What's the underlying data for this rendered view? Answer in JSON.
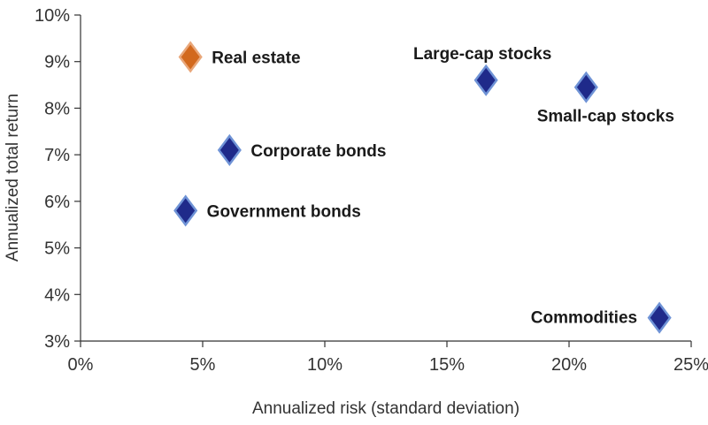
{
  "chart_data": {
    "type": "scatter",
    "xlabel": "Annualized risk (standard deviation)",
    "ylabel": "Annualized total return",
    "xlim": [
      0,
      25
    ],
    "ylim": [
      3,
      10
    ],
    "x_ticks": [
      0,
      5,
      10,
      15,
      20,
      25
    ],
    "y_ticks": [
      3,
      4,
      5,
      6,
      7,
      8,
      9,
      10
    ],
    "x_tick_labels": [
      "0%",
      "5%",
      "10%",
      "15%",
      "20%",
      "25%"
    ],
    "y_tick_labels": [
      "3%",
      "4%",
      "5%",
      "6%",
      "7%",
      "8%",
      "9%",
      "10%"
    ],
    "grid": false,
    "points": [
      {
        "label": "Real estate",
        "x": 4.5,
        "y": 9.1,
        "color": "#D2691E",
        "label_position": "right"
      },
      {
        "label": "Large-cap stocks",
        "x": 16.6,
        "y": 8.6,
        "color": "#1F2A8A",
        "label_position": "above"
      },
      {
        "label": "Small-cap stocks",
        "x": 20.7,
        "y": 8.45,
        "color": "#1F2A8A",
        "label_position": "below-right"
      },
      {
        "label": "Corporate bonds",
        "x": 6.1,
        "y": 7.1,
        "color": "#1F2A8A",
        "label_position": "right"
      },
      {
        "label": "Government bonds",
        "x": 4.3,
        "y": 5.8,
        "color": "#1F2A8A",
        "label_position": "right"
      },
      {
        "label": "Commodities",
        "x": 23.7,
        "y": 3.5,
        "color": "#1F2A8A",
        "label_position": "left"
      }
    ]
  }
}
